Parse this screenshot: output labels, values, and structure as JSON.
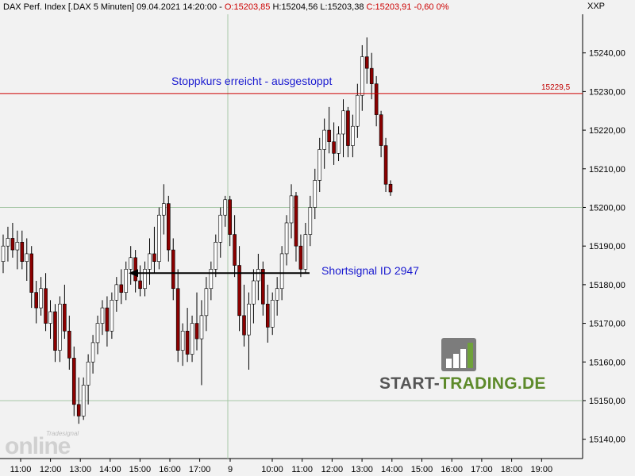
{
  "header": {
    "instrument": "DAX Perf. Index [.DAX  5 Minuten]",
    "datetime": "09.04.2021 14:20:00",
    "sep": "-",
    "open": "O:15203,85",
    "high": "H:15204,56",
    "low": "L:15203,38",
    "close": "C:15203,91",
    "change": "-0,60 0%"
  },
  "axis_code": "XXP",
  "annotations": {
    "stop": "Stoppkurs erreicht - ausgestoppt",
    "short": "Shortsignal ID 2947",
    "stop_level_label": "15229,5"
  },
  "watermark": {
    "small": "Tradesignal",
    "big": "online"
  },
  "logo": {
    "part1": "START-",
    "part2": "TRADING.DE"
  },
  "colors": {
    "up_candle": "#ffffff",
    "down_candle": "#8b0000",
    "stop_line": "#cc0000",
    "signal_arrow": "#000000",
    "annotation_text": "#1a1ad0",
    "logo_green": "#5d8a2a"
  },
  "chart_data": {
    "type": "candlestick",
    "y_tick_labels": [
      "15140,00",
      "15150,00",
      "15160,00",
      "15170,00",
      "15180,00",
      "15190,00",
      "15200,00",
      "15210,00",
      "15220,00",
      "15230,00",
      "15240,00"
    ],
    "ylim": [
      15135,
      15250
    ],
    "x_tick_labels": [
      "11:00",
      "12:00",
      "13:00",
      "14:00",
      "15:00",
      "16:00",
      "17:00",
      "9",
      "10:00",
      "11:00",
      "12:00",
      "13:00",
      "14:00",
      "15:00",
      "16:00",
      "17:00",
      "18:00",
      "19:00"
    ],
    "stop_level": 15229.5,
    "short_signal_level": 15183,
    "candles": [
      {
        "o": 15186,
        "h": 15193,
        "l": 15183,
        "c": 15190
      },
      {
        "o": 15190,
        "h": 15195,
        "l": 15186,
        "c": 15192
      },
      {
        "o": 15192,
        "h": 15196,
        "l": 15187,
        "c": 15189
      },
      {
        "o": 15189,
        "h": 15194,
        "l": 15184,
        "c": 15191
      },
      {
        "o": 15191,
        "h": 15194,
        "l": 15184,
        "c": 15186
      },
      {
        "o": 15186,
        "h": 15192,
        "l": 15181,
        "c": 15188
      },
      {
        "o": 15188,
        "h": 15190,
        "l": 15174,
        "c": 15178
      },
      {
        "o": 15178,
        "h": 15181,
        "l": 15170,
        "c": 15174
      },
      {
        "o": 15174,
        "h": 15182,
        "l": 15172,
        "c": 15179
      },
      {
        "o": 15179,
        "h": 15183,
        "l": 15168,
        "c": 15170
      },
      {
        "o": 15170,
        "h": 15176,
        "l": 15166,
        "c": 15173
      },
      {
        "o": 15173,
        "h": 15175,
        "l": 15160,
        "c": 15163
      },
      {
        "o": 15163,
        "h": 15177,
        "l": 15160,
        "c": 15175
      },
      {
        "o": 15175,
        "h": 15180,
        "l": 15166,
        "c": 15168
      },
      {
        "o": 15168,
        "h": 15172,
        "l": 15158,
        "c": 15161
      },
      {
        "o": 15161,
        "h": 15164,
        "l": 15146,
        "c": 15149
      },
      {
        "o": 15149,
        "h": 15156,
        "l": 15144,
        "c": 15146
      },
      {
        "o": 15146,
        "h": 15156,
        "l": 15145,
        "c": 15154
      },
      {
        "o": 15154,
        "h": 15162,
        "l": 15149,
        "c": 15160
      },
      {
        "o": 15160,
        "h": 15167,
        "l": 15157,
        "c": 15165
      },
      {
        "o": 15165,
        "h": 15172,
        "l": 15162,
        "c": 15170
      },
      {
        "o": 15170,
        "h": 15176,
        "l": 15167,
        "c": 15174
      },
      {
        "o": 15174,
        "h": 15177,
        "l": 15164,
        "c": 15168
      },
      {
        "o": 15168,
        "h": 15178,
        "l": 15166,
        "c": 15176
      },
      {
        "o": 15176,
        "h": 15182,
        "l": 15173,
        "c": 15180
      },
      {
        "o": 15180,
        "h": 15184,
        "l": 15175,
        "c": 15178
      },
      {
        "o": 15178,
        "h": 15186,
        "l": 15176,
        "c": 15184
      },
      {
        "o": 15184,
        "h": 15190,
        "l": 15180,
        "c": 15187
      },
      {
        "o": 15187,
        "h": 15189,
        "l": 15178,
        "c": 15181
      },
      {
        "o": 15181,
        "h": 15185,
        "l": 15177,
        "c": 15179
      },
      {
        "o": 15179,
        "h": 15186,
        "l": 15177,
        "c": 15184
      },
      {
        "o": 15184,
        "h": 15192,
        "l": 15180,
        "c": 15188
      },
      {
        "o": 15188,
        "h": 15195,
        "l": 15183,
        "c": 15186
      },
      {
        "o": 15186,
        "h": 15200,
        "l": 15184,
        "c": 15198
      },
      {
        "o": 15198,
        "h": 15206,
        "l": 15193,
        "c": 15201
      },
      {
        "o": 15201,
        "h": 15203,
        "l": 15186,
        "c": 15189
      },
      {
        "o": 15189,
        "h": 15192,
        "l": 15176,
        "c": 15179
      },
      {
        "o": 15179,
        "h": 15184,
        "l": 15160,
        "c": 15163
      },
      {
        "o": 15163,
        "h": 15170,
        "l": 15159,
        "c": 15168
      },
      {
        "o": 15168,
        "h": 15174,
        "l": 15160,
        "c": 15162
      },
      {
        "o": 15162,
        "h": 15172,
        "l": 15160,
        "c": 15170
      },
      {
        "o": 15170,
        "h": 15178,
        "l": 15163,
        "c": 15166
      },
      {
        "o": 15166,
        "h": 15176,
        "l": 15154,
        "c": 15172
      },
      {
        "o": 15172,
        "h": 15182,
        "l": 15168,
        "c": 15179
      },
      {
        "o": 15179,
        "h": 15186,
        "l": 15176,
        "c": 15184
      },
      {
        "o": 15184,
        "h": 15193,
        "l": 15182,
        "c": 15191
      },
      {
        "o": 15191,
        "h": 15200,
        "l": 15187,
        "c": 15198
      },
      {
        "o": 15198,
        "h": 15203,
        "l": 15195,
        "c": 15202
      },
      {
        "o": 15202,
        "h": 15203,
        "l": 15190,
        "c": 15193
      },
      {
        "o": 15193,
        "h": 15198,
        "l": 15182,
        "c": 15185
      },
      {
        "o": 15185,
        "h": 15190,
        "l": 15168,
        "c": 15172
      },
      {
        "o": 15172,
        "h": 15180,
        "l": 15164,
        "c": 15167
      },
      {
        "o": 15167,
        "h": 15178,
        "l": 15158,
        "c": 15175
      },
      {
        "o": 15175,
        "h": 15184,
        "l": 15170,
        "c": 15181
      },
      {
        "o": 15181,
        "h": 15188,
        "l": 15176,
        "c": 15184
      },
      {
        "o": 15184,
        "h": 15186,
        "l": 15172,
        "c": 15175
      },
      {
        "o": 15175,
        "h": 15180,
        "l": 15165,
        "c": 15169
      },
      {
        "o": 15169,
        "h": 15178,
        "l": 15167,
        "c": 15176
      },
      {
        "o": 15176,
        "h": 15182,
        "l": 15172,
        "c": 15179
      },
      {
        "o": 15179,
        "h": 15190,
        "l": 15176,
        "c": 15188
      },
      {
        "o": 15188,
        "h": 15198,
        "l": 15185,
        "c": 15196
      },
      {
        "o": 15196,
        "h": 15206,
        "l": 15192,
        "c": 15203
      },
      {
        "o": 15203,
        "h": 15204,
        "l": 15186,
        "c": 15190
      },
      {
        "o": 15190,
        "h": 15193,
        "l": 15182,
        "c": 15184
      },
      {
        "o": 15184,
        "h": 15196,
        "l": 15183,
        "c": 15193
      },
      {
        "o": 15193,
        "h": 15203,
        "l": 15190,
        "c": 15200
      },
      {
        "o": 15200,
        "h": 15210,
        "l": 15197,
        "c": 15207
      },
      {
        "o": 15207,
        "h": 15218,
        "l": 15204,
        "c": 15215
      },
      {
        "o": 15215,
        "h": 15223,
        "l": 15210,
        "c": 15220
      },
      {
        "o": 15220,
        "h": 15226,
        "l": 15214,
        "c": 15217
      },
      {
        "o": 15217,
        "h": 15222,
        "l": 15211,
        "c": 15214
      },
      {
        "o": 15214,
        "h": 15221,
        "l": 15212,
        "c": 15219
      },
      {
        "o": 15219,
        "h": 15228,
        "l": 15213,
        "c": 15225
      },
      {
        "o": 15225,
        "h": 15226,
        "l": 15213,
        "c": 15216
      },
      {
        "o": 15216,
        "h": 15224,
        "l": 15213,
        "c": 15221
      },
      {
        "o": 15221,
        "h": 15232,
        "l": 15218,
        "c": 15229
      },
      {
        "o": 15229,
        "h": 15242,
        "l": 15225,
        "c": 15239
      },
      {
        "o": 15239,
        "h": 15244,
        "l": 15232,
        "c": 15236
      },
      {
        "o": 15236,
        "h": 15240,
        "l": 15228,
        "c": 15232
      },
      {
        "o": 15232,
        "h": 15234,
        "l": 15221,
        "c": 15224
      },
      {
        "o": 15224,
        "h": 15225,
        "l": 15213,
        "c": 15216
      },
      {
        "o": 15216,
        "h": 15218,
        "l": 15204,
        "c": 15206
      },
      {
        "o": 15206,
        "h": 15207,
        "l": 15203,
        "c": 15204
      }
    ]
  }
}
